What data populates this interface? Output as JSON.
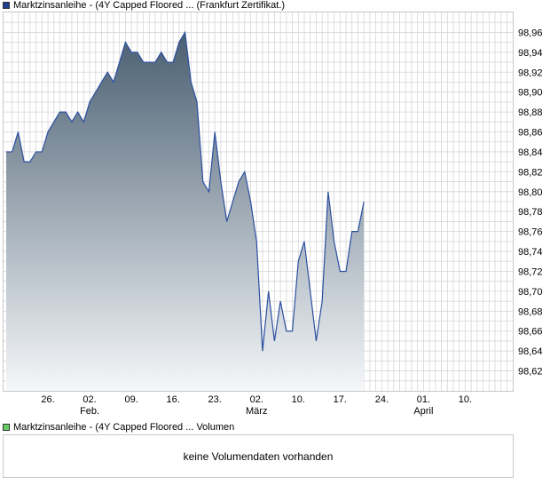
{
  "price_legend": {
    "label": "Marktzinsanleihe - (4Y Capped Floored ... (Frankfurt Zertifikat.)",
    "color": "#1f3f8f"
  },
  "volume_legend": {
    "label": "Marktzinsanleihe - (4Y Capped Floored ... Volumen",
    "color": "#66cc66"
  },
  "volume_message": "keine Volumendaten vorhanden",
  "colors": {
    "line": "#2b4ea0",
    "fill_top": "#4a5f72",
    "fill_bottom": "#f5f7f9",
    "grid": "#d6d6d6",
    "frame": "#c8c8c8"
  },
  "chart_data": {
    "type": "area",
    "ylim": [
      98.6,
      98.98
    ],
    "y_ticks": [
      "98,62",
      "98,64",
      "98,66",
      "98,68",
      "98,70",
      "98,72",
      "98,74",
      "98,76",
      "98,78",
      "98,80",
      "98,82",
      "98,84",
      "98,86",
      "98,88",
      "98,90",
      "98,92",
      "98,94",
      "98,96"
    ],
    "x_ticks": [
      {
        "index": 7,
        "day": "26.",
        "month": ""
      },
      {
        "index": 14,
        "day": "02.",
        "month": "Feb."
      },
      {
        "index": 21,
        "day": "09.",
        "month": ""
      },
      {
        "index": 28,
        "day": "16.",
        "month": ""
      },
      {
        "index": 35,
        "day": "23.",
        "month": ""
      },
      {
        "index": 42,
        "day": "02.",
        "month": "März"
      },
      {
        "index": 49,
        "day": "10.",
        "month": ""
      },
      {
        "index": 56,
        "day": "17.",
        "month": ""
      },
      {
        "index": 63,
        "day": "24.",
        "month": ""
      },
      {
        "index": 70,
        "day": "01.",
        "month": "April"
      },
      {
        "index": 77,
        "day": "10.",
        "month": ""
      }
    ],
    "values": [
      98.84,
      98.84,
      98.86,
      98.83,
      98.83,
      98.84,
      98.84,
      98.86,
      98.87,
      98.88,
      98.88,
      98.87,
      98.88,
      98.87,
      98.89,
      98.9,
      98.91,
      98.92,
      98.91,
      98.93,
      98.95,
      98.94,
      98.94,
      98.93,
      98.93,
      98.93,
      98.94,
      98.93,
      98.93,
      98.95,
      98.96,
      98.91,
      98.89,
      98.81,
      98.8,
      98.86,
      98.81,
      98.77,
      98.79,
      98.81,
      98.82,
      98.79,
      98.75,
      98.64,
      98.7,
      98.65,
      98.69,
      98.66,
      98.66,
      98.73,
      98.75,
      98.7,
      98.65,
      98.69,
      98.8,
      98.75,
      98.72,
      98.72,
      98.76,
      98.76,
      98.79
    ]
  }
}
